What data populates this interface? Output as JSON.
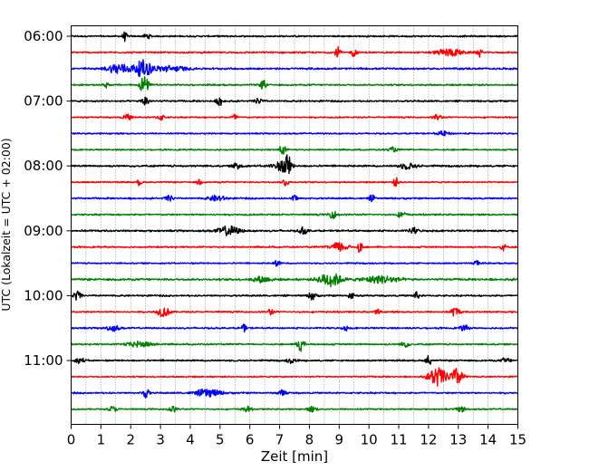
{
  "chart_data": {
    "type": "line",
    "chart_kind": "helicorder",
    "xlabel": "Zeit  [min]",
    "ylabel": "UTC (Lokalzeit = UTC + 02:00)",
    "xlim": [
      0,
      15
    ],
    "x_ticks": [
      "0",
      "1",
      "2",
      "3",
      "4",
      "5",
      "6",
      "7",
      "8",
      "9",
      "10",
      "11",
      "12",
      "13",
      "14",
      "15"
    ],
    "y_ticks": [
      "06:00",
      "07:00",
      "08:00",
      "09:00",
      "10:00",
      "11:00"
    ],
    "row_interval_minutes": 15,
    "start_time": "06:00",
    "row_count": 24,
    "vertical_grid": "dotted, every 0.5 min",
    "color_cycle": [
      "#000000",
      "#ff0000",
      "#0000ff",
      "#008000"
    ],
    "series": [
      {
        "start": "06:00",
        "color": "#000000",
        "amp": 0.7,
        "events": [
          {
            "t": 1.8,
            "a": 5,
            "w": 0.05
          },
          {
            "t": 2.55,
            "a": 3,
            "w": 0.08
          }
        ]
      },
      {
        "start": "06:15",
        "color": "#ff0000",
        "amp": 0.7,
        "events": [
          {
            "t": 8.95,
            "a": 6,
            "w": 0.06
          },
          {
            "t": 9.5,
            "a": 5,
            "w": 0.06
          },
          {
            "t": 12.7,
            "a": 4,
            "w": 0.3
          },
          {
            "t": 13.7,
            "a": 5,
            "w": 0.06
          }
        ]
      },
      {
        "start": "06:30",
        "color": "#0000ff",
        "amp": 0.8,
        "events": [
          {
            "t": 1.6,
            "a": 6,
            "w": 0.25
          },
          {
            "t": 2.4,
            "a": 9,
            "w": 0.2
          },
          {
            "t": 3.3,
            "a": 3,
            "w": 0.4
          }
        ]
      },
      {
        "start": "06:45",
        "color": "#008000",
        "amp": 0.7,
        "events": [
          {
            "t": 1.2,
            "a": 4,
            "w": 0.05
          },
          {
            "t": 2.45,
            "a": 10,
            "w": 0.1
          },
          {
            "t": 6.45,
            "a": 6,
            "w": 0.06
          }
        ]
      },
      {
        "start": "07:00",
        "color": "#000000",
        "amp": 0.7,
        "events": [
          {
            "t": 2.5,
            "a": 6,
            "w": 0.08
          },
          {
            "t": 5.0,
            "a": 5,
            "w": 0.08
          },
          {
            "t": 6.3,
            "a": 3,
            "w": 0.1
          }
        ]
      },
      {
        "start": "07:15",
        "color": "#ff0000",
        "amp": 0.6,
        "events": [
          {
            "t": 1.9,
            "a": 3,
            "w": 0.1
          },
          {
            "t": 3.0,
            "a": 3,
            "w": 0.1
          },
          {
            "t": 5.5,
            "a": 3,
            "w": 0.08
          },
          {
            "t": 12.3,
            "a": 3,
            "w": 0.1
          }
        ]
      },
      {
        "start": "07:30",
        "color": "#0000ff",
        "amp": 0.6,
        "events": [
          {
            "t": 12.5,
            "a": 2.5,
            "w": 0.15
          }
        ]
      },
      {
        "start": "07:45",
        "color": "#008000",
        "amp": 0.6,
        "events": [
          {
            "t": 7.1,
            "a": 5,
            "w": 0.08
          },
          {
            "t": 10.8,
            "a": 2.5,
            "w": 0.1
          }
        ]
      },
      {
        "start": "08:00",
        "color": "#000000",
        "amp": 0.8,
        "events": [
          {
            "t": 5.6,
            "a": 4,
            "w": 0.1
          },
          {
            "t": 7.0,
            "a": 4,
            "w": 0.2
          },
          {
            "t": 7.25,
            "a": 12,
            "w": 0.1
          },
          {
            "t": 11.3,
            "a": 3,
            "w": 0.2
          }
        ]
      },
      {
        "start": "08:15",
        "color": "#ff0000",
        "amp": 0.6,
        "events": [
          {
            "t": 2.3,
            "a": 4,
            "w": 0.05
          },
          {
            "t": 4.3,
            "a": 4,
            "w": 0.05
          },
          {
            "t": 7.2,
            "a": 4,
            "w": 0.08
          },
          {
            "t": 10.9,
            "a": 5,
            "w": 0.06
          }
        ]
      },
      {
        "start": "08:30",
        "color": "#0000ff",
        "amp": 0.7,
        "events": [
          {
            "t": 3.3,
            "a": 3,
            "w": 0.1
          },
          {
            "t": 4.9,
            "a": 3,
            "w": 0.2
          },
          {
            "t": 7.5,
            "a": 4,
            "w": 0.06
          },
          {
            "t": 10.1,
            "a": 3,
            "w": 0.08
          }
        ]
      },
      {
        "start": "08:45",
        "color": "#008000",
        "amp": 0.7,
        "events": [
          {
            "t": 8.8,
            "a": 4,
            "w": 0.1
          },
          {
            "t": 11.1,
            "a": 3,
            "w": 0.1
          }
        ]
      },
      {
        "start": "09:00",
        "color": "#000000",
        "amp": 0.8,
        "events": [
          {
            "t": 5.3,
            "a": 5,
            "w": 0.25
          },
          {
            "t": 7.8,
            "a": 3.5,
            "w": 0.1
          },
          {
            "t": 11.5,
            "a": 3,
            "w": 0.1
          }
        ]
      },
      {
        "start": "09:15",
        "color": "#ff0000",
        "amp": 0.7,
        "events": [
          {
            "t": 9.0,
            "a": 5,
            "w": 0.2
          },
          {
            "t": 9.7,
            "a": 6,
            "w": 0.06
          },
          {
            "t": 14.5,
            "a": 4,
            "w": 0.06
          }
        ]
      },
      {
        "start": "09:30",
        "color": "#0000ff",
        "amp": 0.6,
        "events": [
          {
            "t": 6.9,
            "a": 3,
            "w": 0.08
          },
          {
            "t": 13.6,
            "a": 4,
            "w": 0.06
          }
        ]
      },
      {
        "start": "09:45",
        "color": "#008000",
        "amp": 0.9,
        "events": [
          {
            "t": 6.4,
            "a": 3,
            "w": 0.2
          },
          {
            "t": 8.7,
            "a": 8,
            "w": 0.25
          },
          {
            "t": 10.4,
            "a": 4,
            "w": 0.4
          }
        ]
      },
      {
        "start": "10:00",
        "color": "#000000",
        "amp": 0.7,
        "events": [
          {
            "t": 0.2,
            "a": 5,
            "w": 0.1
          },
          {
            "t": 8.1,
            "a": 5,
            "w": 0.08
          },
          {
            "t": 9.4,
            "a": 5,
            "w": 0.06
          },
          {
            "t": 11.6,
            "a": 4,
            "w": 0.06
          }
        ]
      },
      {
        "start": "10:15",
        "color": "#ff0000",
        "amp": 0.7,
        "events": [
          {
            "t": 3.1,
            "a": 5,
            "w": 0.15
          },
          {
            "t": 6.7,
            "a": 4,
            "w": 0.06
          },
          {
            "t": 10.3,
            "a": 3,
            "w": 0.06
          },
          {
            "t": 12.9,
            "a": 5,
            "w": 0.1
          }
        ]
      },
      {
        "start": "10:30",
        "color": "#0000ff",
        "amp": 0.7,
        "events": [
          {
            "t": 1.4,
            "a": 3,
            "w": 0.15
          },
          {
            "t": 5.8,
            "a": 4,
            "w": 0.06
          },
          {
            "t": 9.2,
            "a": 3,
            "w": 0.06
          },
          {
            "t": 13.2,
            "a": 3,
            "w": 0.1
          }
        ]
      },
      {
        "start": "10:45",
        "color": "#008000",
        "amp": 0.7,
        "events": [
          {
            "t": 2.3,
            "a": 3,
            "w": 0.3
          },
          {
            "t": 7.7,
            "a": 8,
            "w": 0.08
          },
          {
            "t": 11.2,
            "a": 3,
            "w": 0.1
          }
        ]
      },
      {
        "start": "11:00",
        "color": "#000000",
        "amp": 0.7,
        "events": [
          {
            "t": 0.3,
            "a": 3,
            "w": 0.1
          },
          {
            "t": 7.4,
            "a": 3,
            "w": 0.1
          },
          {
            "t": 12.0,
            "a": 6,
            "w": 0.06
          },
          {
            "t": 14.6,
            "a": 3,
            "w": 0.1
          }
        ]
      },
      {
        "start": "11:15",
        "color": "#ff0000",
        "amp": 0.6,
        "events": [
          {
            "t": 12.3,
            "a": 11,
            "w": 0.2
          },
          {
            "t": 12.95,
            "a": 9,
            "w": 0.15
          }
        ]
      },
      {
        "start": "11:30",
        "color": "#0000ff",
        "amp": 0.7,
        "events": [
          {
            "t": 2.5,
            "a": 5,
            "w": 0.08
          },
          {
            "t": 4.6,
            "a": 4,
            "w": 0.3
          },
          {
            "t": 7.1,
            "a": 3,
            "w": 0.1
          }
        ]
      },
      {
        "start": "11:45",
        "color": "#008000",
        "amp": 0.6,
        "events": [
          {
            "t": 1.4,
            "a": 3,
            "w": 0.1
          },
          {
            "t": 3.4,
            "a": 3,
            "w": 0.1
          },
          {
            "t": 5.9,
            "a": 3,
            "w": 0.1
          },
          {
            "t": 8.1,
            "a": 3,
            "w": 0.1
          },
          {
            "t": 13.1,
            "a": 3,
            "w": 0.1
          }
        ]
      }
    ]
  }
}
